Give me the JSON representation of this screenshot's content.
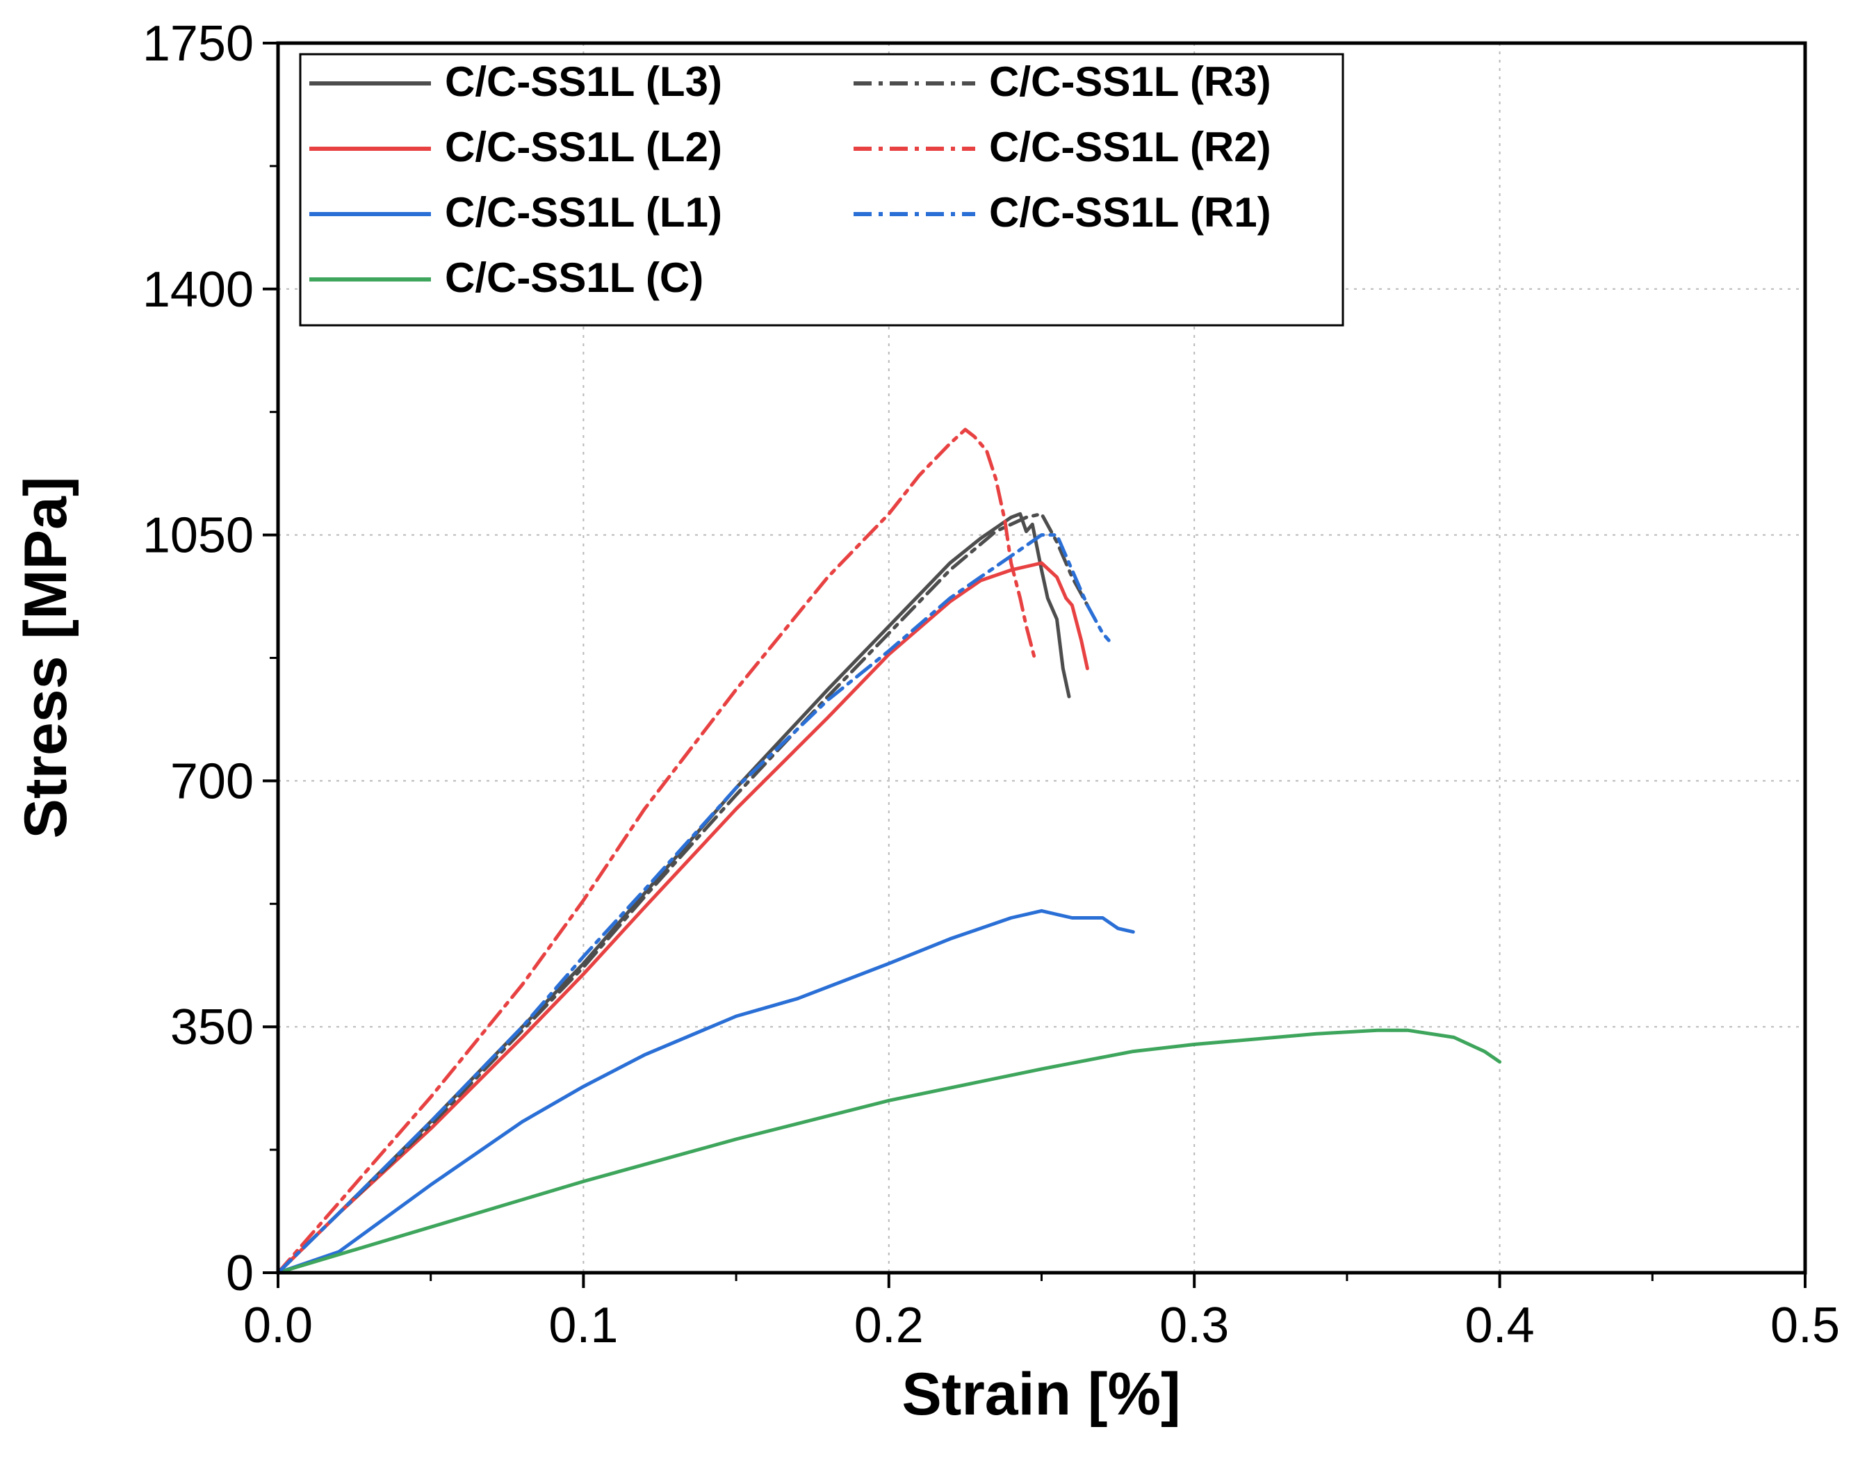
{
  "chart_data": {
    "type": "line",
    "title": "",
    "xlabel": "Strain [%]",
    "ylabel": "Stress [MPa]",
    "xlim": [
      0,
      0.5
    ],
    "ylim": [
      0,
      1750
    ],
    "xticks": [
      "0.0",
      "0.1",
      "0.2",
      "0.3",
      "0.4",
      "0.5"
    ],
    "yticks": [
      "0",
      "350",
      "700",
      "1050",
      "1400",
      "1750"
    ],
    "grid": true,
    "legend_position": "top-left",
    "series": [
      {
        "name": "C/C-SS1L (L3)",
        "color": "#4d4d4d",
        "style": "solid",
        "x": [
          0,
          0.02,
          0.05,
          0.08,
          0.1,
          0.12,
          0.15,
          0.18,
          0.2,
          0.22,
          0.23,
          0.235,
          0.24,
          0.243,
          0.245,
          0.247,
          0.25,
          0.252,
          0.255,
          0.257,
          0.259
        ],
        "y": [
          0,
          85,
          215,
          350,
          440,
          540,
          690,
          830,
          920,
          1010,
          1045,
          1060,
          1075,
          1080,
          1055,
          1065,
          1000,
          960,
          930,
          860,
          820
        ]
      },
      {
        "name": "C/C-SS1L (L2)",
        "color": "#e84142",
        "style": "solid",
        "x": [
          0,
          0.02,
          0.05,
          0.08,
          0.1,
          0.12,
          0.15,
          0.18,
          0.2,
          0.22,
          0.23,
          0.24,
          0.25,
          0.255,
          0.258,
          0.26,
          0.263,
          0.265
        ],
        "y": [
          0,
          85,
          205,
          335,
          425,
          520,
          660,
          790,
          880,
          955,
          985,
          1000,
          1010,
          990,
          960,
          950,
          900,
          860
        ]
      },
      {
        "name": "C/C-SS1L (L1)",
        "color": "#2a6fd6",
        "style": "solid",
        "x": [
          0,
          0.02,
          0.05,
          0.08,
          0.1,
          0.12,
          0.15,
          0.17,
          0.2,
          0.22,
          0.24,
          0.25,
          0.255,
          0.26,
          0.27,
          0.275,
          0.28
        ],
        "y": [
          0,
          30,
          125,
          215,
          265,
          310,
          365,
          390,
          440,
          475,
          505,
          515,
          510,
          505,
          505,
          490,
          485
        ]
      },
      {
        "name": "C/C-SS1L (C)",
        "color": "#3ea55c",
        "style": "solid",
        "x": [
          0,
          0.05,
          0.1,
          0.15,
          0.2,
          0.25,
          0.28,
          0.3,
          0.34,
          0.36,
          0.37,
          0.385,
          0.395,
          0.4
        ],
        "y": [
          0,
          65,
          130,
          190,
          245,
          290,
          315,
          325,
          340,
          345,
          345,
          335,
          315,
          300
        ]
      },
      {
        "name": "C/C-SS1L (R3)",
        "color": "#4d4d4d",
        "style": "dashdot",
        "x": [
          0,
          0.02,
          0.05,
          0.08,
          0.1,
          0.12,
          0.15,
          0.18,
          0.2,
          0.22,
          0.235,
          0.245,
          0.25,
          0.255,
          0.26,
          0.265
        ],
        "y": [
          0,
          85,
          210,
          345,
          435,
          535,
          680,
          820,
          910,
          1000,
          1055,
          1075,
          1080,
          1040,
          990,
          950
        ]
      },
      {
        "name": "C/C-SS1L (R2)",
        "color": "#e84142",
        "style": "dashdot",
        "x": [
          0,
          0.02,
          0.05,
          0.08,
          0.1,
          0.12,
          0.15,
          0.18,
          0.2,
          0.21,
          0.22,
          0.225,
          0.228,
          0.232,
          0.235,
          0.238,
          0.24,
          0.243,
          0.245,
          0.248
        ],
        "y": [
          0,
          100,
          250,
          410,
          530,
          660,
          830,
          990,
          1080,
          1135,
          1180,
          1200,
          1190,
          1170,
          1130,
          1070,
          1010,
          960,
          920,
          870
        ]
      },
      {
        "name": "C/C-SS1L (R1)",
        "color": "#2a6fd6",
        "style": "dashdot",
        "x": [
          0,
          0.02,
          0.05,
          0.08,
          0.1,
          0.12,
          0.15,
          0.18,
          0.2,
          0.22,
          0.24,
          0.25,
          0.255,
          0.26,
          0.265,
          0.27,
          0.272
        ],
        "y": [
          0,
          85,
          215,
          350,
          450,
          545,
          690,
          815,
          885,
          960,
          1020,
          1050,
          1050,
          1000,
          950,
          910,
          900
        ]
      }
    ]
  }
}
